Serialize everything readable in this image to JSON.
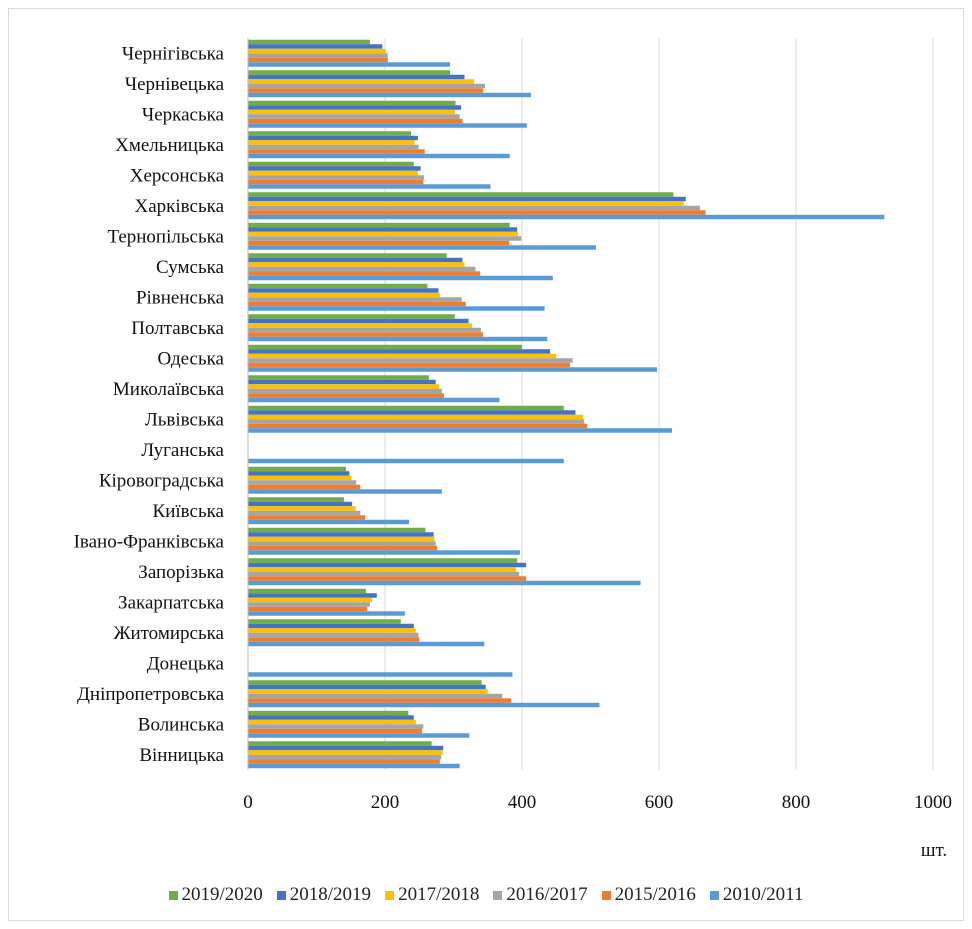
{
  "colors": {
    "s2019": "#70ad47",
    "s2018": "#4472c4",
    "s2017": "#ffc000",
    "s2016": "#a5a5a5",
    "s2015": "#ed7d31",
    "s2010": "#5b9bd5",
    "grid": "#d9d9d9"
  },
  "chart_data": {
    "type": "bar",
    "orientation": "horizontal",
    "title": "",
    "xlabel": "шт.",
    "ylabel": "",
    "xlim": [
      0,
      1000
    ],
    "xticks": [
      "0",
      "200",
      "400",
      "600",
      "800",
      "1000"
    ],
    "grid": "vertical",
    "legend_position": "bottom",
    "categories": [
      "Чернігівська",
      "Чернівецька",
      "Черкаська",
      "Хмельницька",
      "Херсонська",
      "Харківська",
      "Тернопільська",
      "Сумська",
      "Рівненська",
      "Полтавська",
      "Одеська",
      "Миколаївська",
      "Львівська",
      "Луганська",
      "Кіровоградська",
      "Київська",
      "Івано-Франківська",
      "Запорізька",
      "Закарпатська",
      "Житомирська",
      "Донецька",
      "Дніпропетровська",
      "Волинська",
      "Вінницька"
    ],
    "series": [
      {
        "name": "2019/2020",
        "color": "#70ad47",
        "values": [
          178,
          295,
          303,
          238,
          242,
          621,
          382,
          290,
          262,
          302,
          400,
          264,
          461,
          0,
          143,
          140,
          259,
          393,
          172,
          223,
          0,
          341,
          234,
          268
        ]
      },
      {
        "name": "2018/2019",
        "color": "#4472c4",
        "values": [
          196,
          316,
          311,
          248,
          252,
          639,
          393,
          313,
          278,
          322,
          441,
          274,
          478,
          0,
          148,
          152,
          271,
          406,
          188,
          242,
          0,
          347,
          242,
          285
        ]
      },
      {
        "name": "2017/2018",
        "color": "#ffc000",
        "values": [
          201,
          330,
          302,
          243,
          248,
          636,
          394,
          316,
          280,
          327,
          450,
          279,
          489,
          0,
          151,
          157,
          272,
          391,
          181,
          245,
          0,
          350,
          245,
          284
        ]
      },
      {
        "name": "2016/2017",
        "color": "#a5a5a5",
        "values": [
          204,
          346,
          309,
          249,
          257,
          660,
          399,
          332,
          312,
          340,
          474,
          283,
          491,
          0,
          158,
          164,
          274,
          396,
          178,
          249,
          0,
          371,
          256,
          282
        ]
      },
      {
        "name": "2015/2016",
        "color": "#ed7d31",
        "values": [
          204,
          343,
          313,
          258,
          256,
          668,
          381,
          339,
          318,
          343,
          470,
          286,
          495,
          0,
          164,
          171,
          276,
          406,
          174,
          250,
          0,
          384,
          254,
          280
        ]
      },
      {
        "name": "2010/2011",
        "color": "#5b9bd5",
        "values": [
          295,
          413,
          407,
          382,
          354,
          929,
          508,
          445,
          433,
          437,
          597,
          367,
          619,
          461,
          283,
          235,
          397,
          573,
          229,
          345,
          386,
          513,
          323,
          309
        ]
      }
    ],
    "unit": "шт."
  }
}
